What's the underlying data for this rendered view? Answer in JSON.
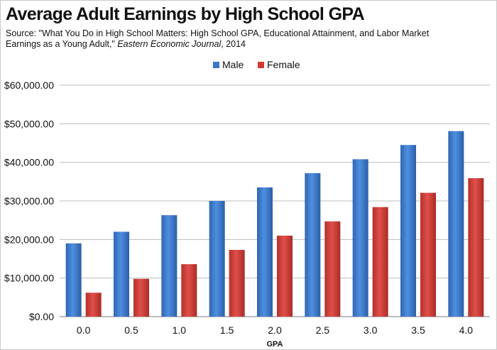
{
  "chart_data": {
    "type": "bar",
    "title": "Average Adult Earnings by High School GPA",
    "source": {
      "prefix": "Source: \"What You Do in High School Matters: High School GPA, Educational Attainment, and Labor Market Earnings as a Young Adult,\" ",
      "journal": "Eastern Economic Journal",
      "suffix": ", 2014"
    },
    "xlabel": "GPA",
    "ylabel": "",
    "categories": [
      "0.0",
      "0.5",
      "1.0",
      "1.5",
      "2.0",
      "2.5",
      "3.0",
      "3.5",
      "4.0"
    ],
    "series": [
      {
        "name": "Male",
        "color": "#3a78c9",
        "values": [
          19000,
          22000,
          26300,
          30000,
          33500,
          37200,
          40800,
          44500,
          48100
        ]
      },
      {
        "name": "Female",
        "color": "#cf3a35",
        "values": [
          6200,
          9800,
          13600,
          17300,
          21000,
          24700,
          28400,
          32100,
          35900
        ]
      }
    ],
    "ylim": [
      0,
      60000
    ],
    "yticks": [
      "$0.00",
      "$10,000.00",
      "$20,000.00",
      "$30,000.00",
      "$40,000.00",
      "$50,000.00",
      "$60,000.00"
    ],
    "legend": "top-center",
    "grid": true
  }
}
